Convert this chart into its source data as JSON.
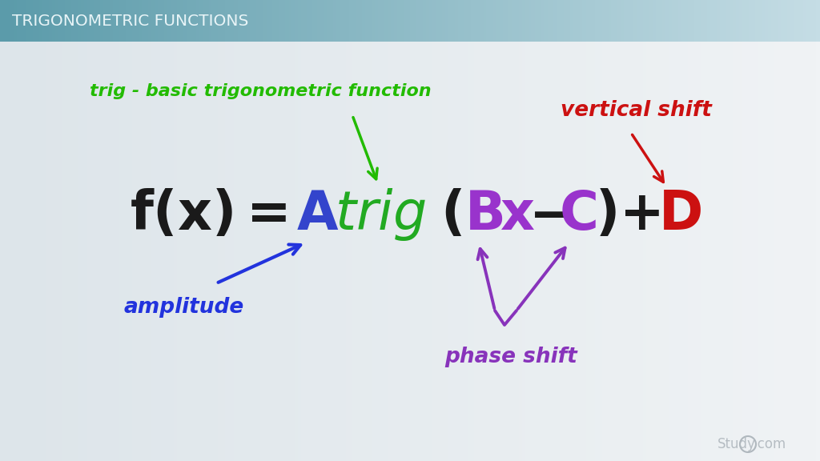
{
  "title_bar_text": "TRIGONOMETRIC FUNCTIONS",
  "title_text_color": "#e8f4f7",
  "color_black": "#1a1a1a",
  "color_A": "#3344cc",
  "color_trig": "#22aa22",
  "color_BC": "#9933cc",
  "color_D": "#cc1111",
  "label_trig": "trig - basic trigonometric function",
  "label_amplitude": "amplitude",
  "label_phase": "phase shift",
  "label_vertical": "vertical shift",
  "color_green": "#22bb00",
  "color_blue": "#2233dd",
  "color_purple": "#8833bb",
  "color_red": "#cc1111",
  "watermark": "Study.com",
  "bg_left": "#dde5ea",
  "bg_right": "#f0f3f5",
  "header_left": "#5b9baa",
  "header_right": "#c5dde5"
}
